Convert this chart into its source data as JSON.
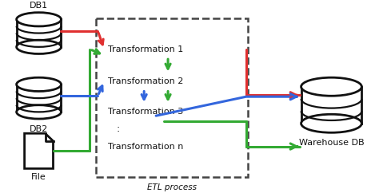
{
  "background_color": "#ffffff",
  "db1_label": "DB1",
  "db2_label": "DB2",
  "file_label": "File",
  "warehouse_label": "Warehouse DB",
  "etl_label": "ETL process",
  "transformations": [
    "Transformation 1",
    "Transformation 2",
    "Transformation 3",
    "Transformation n"
  ],
  "dots": ":",
  "red_color": "#e03030",
  "green_color": "#33aa33",
  "blue_color": "#3366dd",
  "black_color": "#111111",
  "dashed_color": "#444444",
  "figsize": [
    4.74,
    2.42
  ],
  "dpi": 100
}
